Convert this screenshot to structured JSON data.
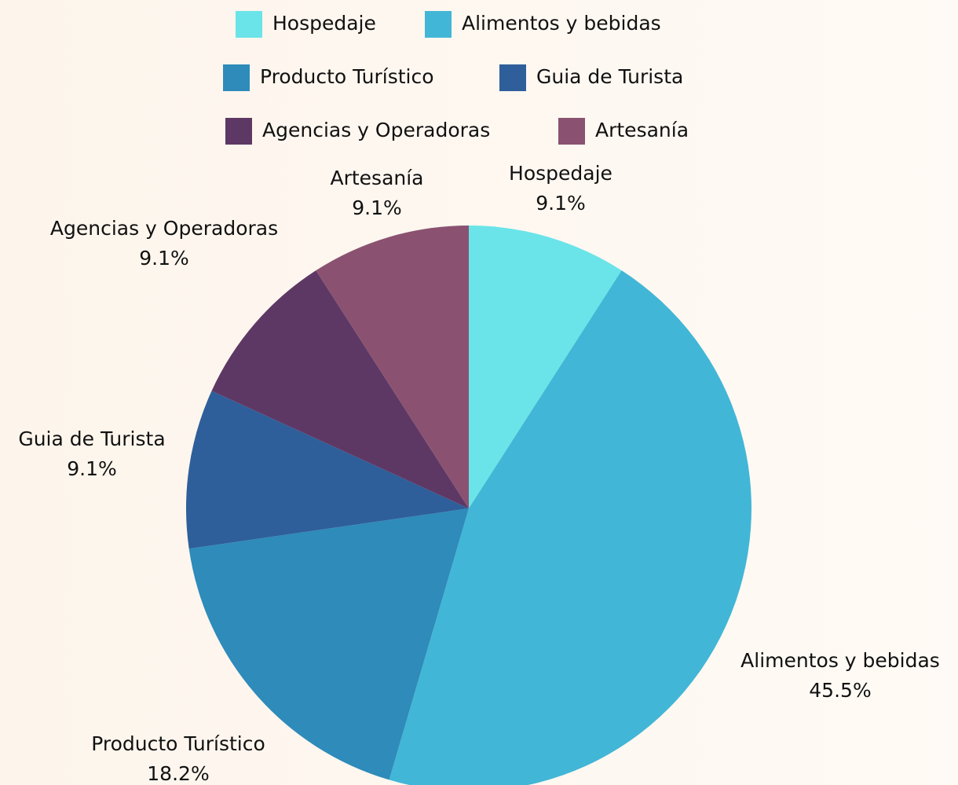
{
  "chart_data": {
    "type": "pie",
    "categories": [
      "Hospedaje",
      "Alimentos y bebidas",
      "Producto Turístico",
      "Guia de Turista",
      "Agencias y Operadoras",
      "Artesanía"
    ],
    "values": [
      9.1,
      45.5,
      18.2,
      9.1,
      9.1,
      9.1
    ],
    "value_labels": [
      "9.1%",
      "45.5%",
      "18.2%",
      "9.1%",
      "9.1%",
      "9.1%"
    ],
    "colors": [
      "#6ae4e8",
      "#42b6d6",
      "#2e8bba",
      "#2e5f9a",
      "#5e3865",
      "#8a5270"
    ],
    "legend": "top"
  }
}
